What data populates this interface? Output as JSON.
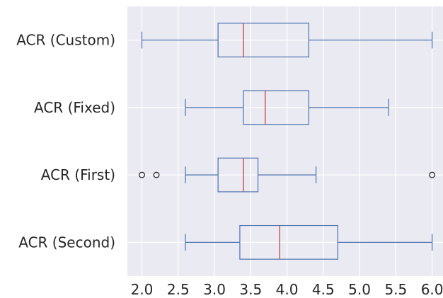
{
  "chart_data": {
    "type": "boxplot",
    "orientation": "horizontal",
    "title": "",
    "xlabel": "",
    "ylabel": "",
    "xlim": [
      1.8,
      6.15
    ],
    "xticks": [
      2.0,
      2.5,
      3.0,
      3.5,
      4.0,
      4.5,
      5.0,
      5.5,
      6.0
    ],
    "xtick_labels": [
      "2.0",
      "2.5",
      "3.0",
      "3.5",
      "4.0",
      "4.5",
      "5.0",
      "5.5",
      "6.0"
    ],
    "grid": true,
    "background": "#eaeaf2",
    "box_color": "#4c72b0",
    "median_color": "#c44e52",
    "categories": [
      {
        "label": "ACR (Custom)",
        "whisker_low": 2.0,
        "q1": 3.05,
        "median": 3.4,
        "q3": 4.3,
        "whisker_high": 6.0,
        "outliers": []
      },
      {
        "label": "ACR (Fixed)",
        "whisker_low": 2.6,
        "q1": 3.4,
        "median": 3.7,
        "q3": 4.3,
        "whisker_high": 5.4,
        "outliers": []
      },
      {
        "label": "ACR (First)",
        "whisker_low": 2.6,
        "q1": 3.05,
        "median": 3.4,
        "q3": 3.6,
        "whisker_high": 4.4,
        "outliers": [
          2.0,
          2.2,
          6.0
        ]
      },
      {
        "label": "ACR (Second)",
        "whisker_low": 2.6,
        "q1": 3.35,
        "median": 3.9,
        "q3": 4.7,
        "whisker_high": 6.0,
        "outliers": []
      }
    ]
  }
}
